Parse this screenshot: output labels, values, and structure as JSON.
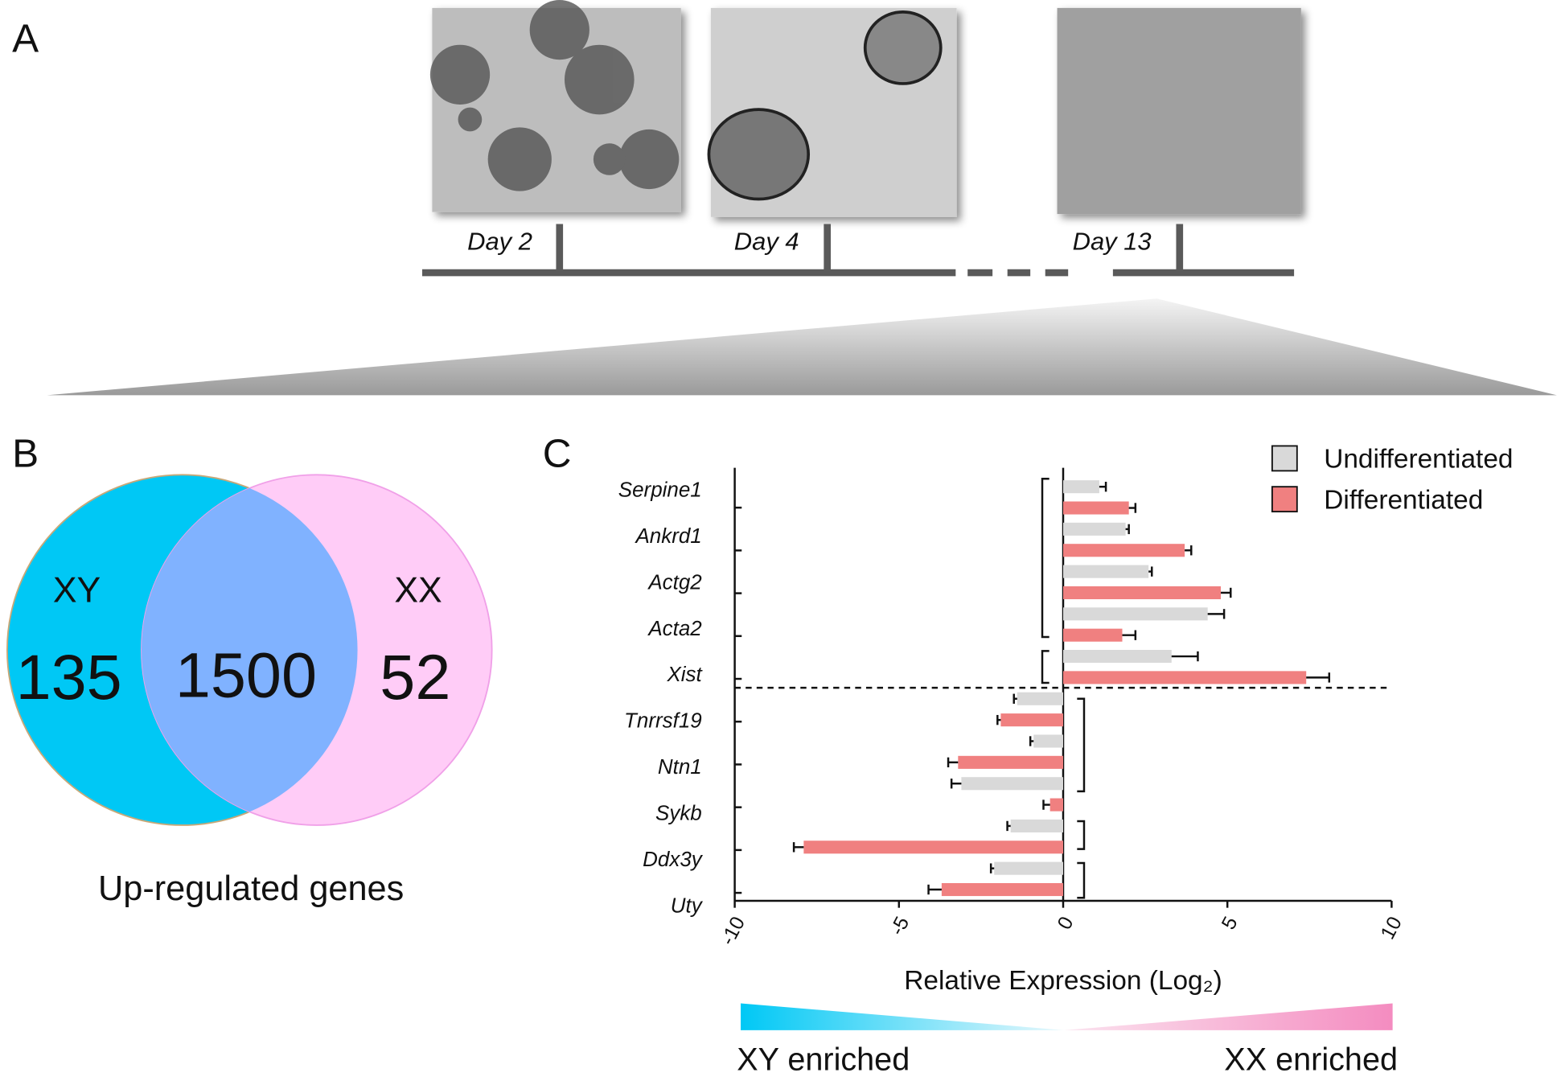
{
  "panel_labels": [
    "A",
    "B",
    "C"
  ],
  "timeline": {
    "labels": [
      "Day 2",
      "Day 4",
      "Day 13"
    ]
  },
  "chart_data": [
    {
      "type": "venn",
      "caption": "Up-regulated genes",
      "sets": [
        {
          "name": "XY",
          "value": 135,
          "color": "#00c8f5"
        },
        {
          "name": "XX",
          "value": 52,
          "color": "#ffccf7"
        }
      ],
      "intersection": {
        "value": 1500,
        "color": "#80b2ff"
      }
    },
    {
      "type": "bar",
      "orientation": "horizontal",
      "categories": [
        "Serpine1",
        "Ankrd1",
        "Actg2",
        "Acta2",
        "Xist",
        "Tnrrsf19",
        "Ntn1",
        "Sykb",
        "Ddx3y",
        "Uty"
      ],
      "series": [
        {
          "name": "Undifferentiated",
          "color": "#d9d9d9",
          "values": [
            1.1,
            1.9,
            2.6,
            4.4,
            3.3,
            -1.4,
            -0.9,
            -3.1,
            -1.6,
            -2.1
          ],
          "errors": [
            0.2,
            0.1,
            0.1,
            0.5,
            0.8,
            0.1,
            0.1,
            0.3,
            0.1,
            0.1
          ]
        },
        {
          "name": "Differentiated",
          "color": "#f08080",
          "values": [
            2.0,
            3.7,
            4.8,
            1.8,
            7.4,
            -1.9,
            -3.2,
            -0.4,
            -7.9,
            -3.7
          ],
          "errors": [
            0.2,
            0.2,
            0.3,
            0.4,
            0.7,
            0.1,
            0.3,
            0.2,
            0.3,
            0.4
          ]
        }
      ],
      "xlim": [
        -10,
        10
      ],
      "xticks": [
        -10,
        -5,
        0,
        5,
        10
      ],
      "xlabel": "Relative Expression (Log₂)",
      "annotations": [
        "XY enriched",
        "XX enriched"
      ]
    }
  ]
}
